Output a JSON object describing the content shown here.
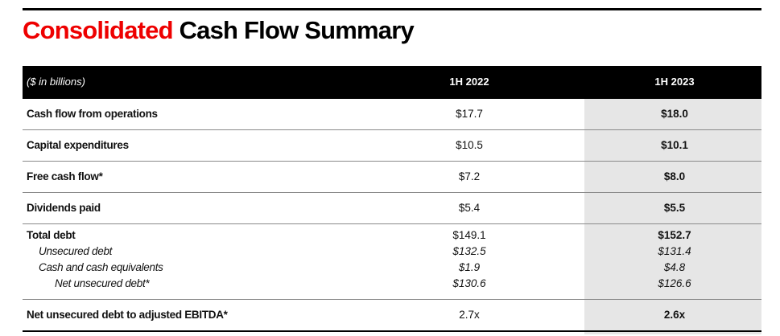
{
  "title": {
    "red": "Consolidated",
    "black": "Cash Flow Summary"
  },
  "table": {
    "caption": "($ in billions)",
    "columns": [
      "1H 2022",
      "1H 2023"
    ],
    "rows": [
      {
        "label": "Cash flow from operations",
        "v2022": "$17.7",
        "v2023": "$18.0"
      },
      {
        "label": "Capital expenditures",
        "v2022": "$10.5",
        "v2023": "$10.1"
      },
      {
        "label": "Free cash flow*",
        "v2022": "$7.2",
        "v2023": "$8.0"
      },
      {
        "label": "Dividends paid",
        "v2022": "$5.4",
        "v2023": "$5.5"
      }
    ],
    "debt": {
      "label": "Total debt",
      "v2022": "$149.1",
      "v2023": "$152.7",
      "sub": [
        {
          "label": "Unsecured debt",
          "v2022": "$132.5",
          "v2023": "$131.4"
        },
        {
          "label": "Cash and cash equivalents",
          "v2022": "$1.9",
          "v2023": "$4.8"
        },
        {
          "label": "Net unsecured debt*",
          "v2022": "$130.6",
          "v2023": "$126.6"
        }
      ]
    },
    "leverage": {
      "label": "Net unsecured debt to adjusted EBITDA*",
      "v2022": "2.7x",
      "v2023": "2.6x"
    }
  }
}
